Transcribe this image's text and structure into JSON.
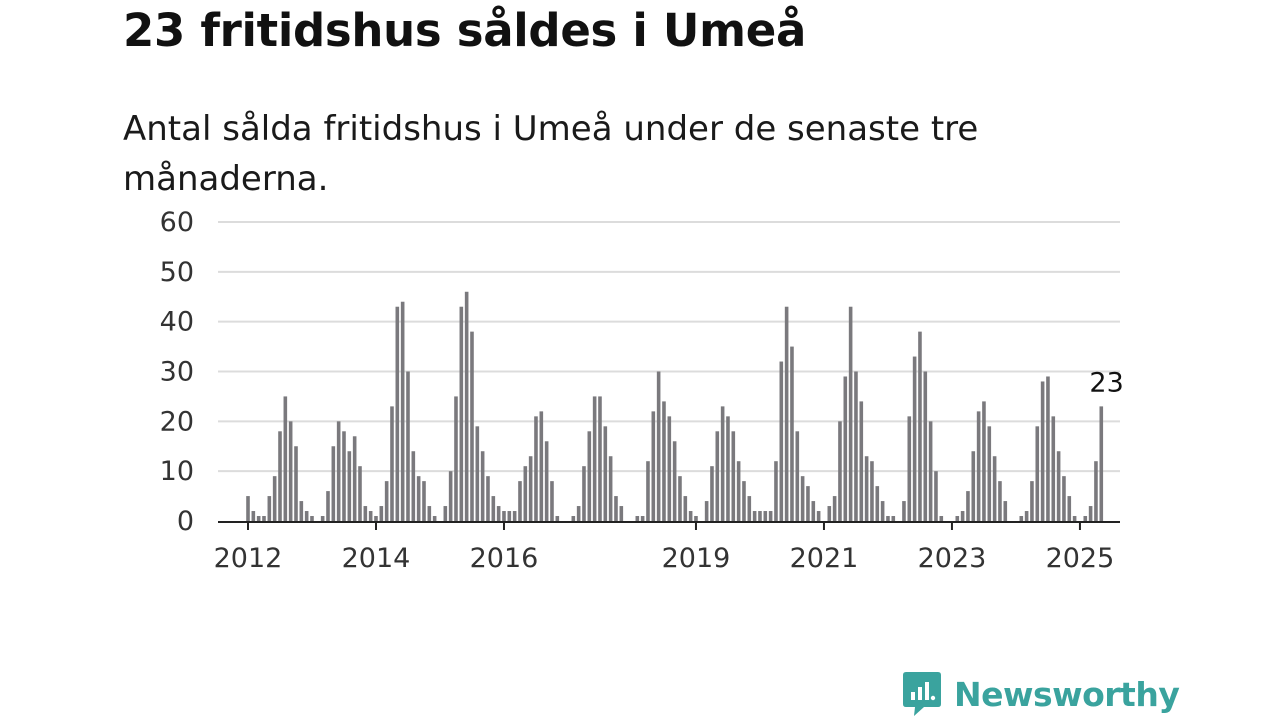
{
  "title": "23 fritidshus såldes i Umeå",
  "subtitle": "Antal sålda fritidshus i Umeå under de senaste tre månaderna.",
  "brand": "Newsworthy",
  "colors": {
    "bar": "#7a797d",
    "highlight": "#2aa3a0",
    "grid": "#dcdcdc",
    "axis": "#222222",
    "brand": "#3aa39e"
  },
  "chart_data": {
    "type": "bar",
    "title": "23 fritidshus såldes i Umeå",
    "subtitle": "Antal sålda fritidshus i Umeå under de senaste tre månaderna.",
    "xlabel": "",
    "ylabel": "",
    "ylim": [
      0,
      60
    ],
    "yticks": [
      0,
      10,
      20,
      30,
      40,
      50,
      60
    ],
    "grid": true,
    "x_start": "2011-10",
    "x_end": "2025-06",
    "x_tick_labels": [
      {
        "label": "2012",
        "date": "2012-01"
      },
      {
        "label": "2014",
        "date": "2014-01"
      },
      {
        "label": "2016",
        "date": "2016-01"
      },
      {
        "label": "2019",
        "date": "2019-01"
      },
      {
        "label": "2021",
        "date": "2021-01"
      },
      {
        "label": "2023",
        "date": "2023-01"
      },
      {
        "label": "2025",
        "date": "2025-01"
      }
    ],
    "series": [
      {
        "values": [
          0,
          0,
          0,
          5,
          2,
          1,
          1,
          5,
          9,
          18,
          25,
          20,
          15,
          4,
          2,
          1,
          0,
          1,
          6,
          15,
          20,
          18,
          14,
          17,
          11,
          3,
          2,
          1,
          3,
          8,
          23,
          43,
          44,
          30,
          14,
          9,
          8,
          3,
          1,
          0,
          3,
          10,
          25,
          43,
          46,
          38,
          19,
          14,
          9,
          5,
          3,
          2,
          2,
          2,
          8,
          11,
          13,
          21,
          22,
          16,
          8,
          1,
          0,
          0,
          1,
          3,
          11,
          18,
          25,
          25,
          19,
          13,
          5,
          3,
          0,
          0,
          1,
          1,
          12,
          22,
          30,
          24,
          21,
          16,
          9,
          5,
          2,
          1,
          0,
          4,
          11,
          18,
          23,
          21,
          18,
          12,
          8,
          5,
          2,
          2,
          2,
          2,
          12,
          32,
          43,
          35,
          18,
          9,
          7,
          4,
          2,
          0,
          3,
          5,
          20,
          29,
          43,
          30,
          24,
          13,
          12,
          7,
          4,
          1,
          1,
          0,
          4,
          21,
          33,
          38,
          30,
          20,
          10,
          1,
          0,
          0,
          1,
          2,
          6,
          14,
          22,
          24,
          19,
          13,
          8,
          4,
          0,
          0,
          1,
          2,
          8,
          19,
          28,
          29,
          21,
          14,
          9,
          5,
          1,
          0,
          1,
          3,
          12,
          23
        ]
      }
    ],
    "highlight": {
      "date": "2025-06",
      "value": 23,
      "label": "23"
    }
  }
}
